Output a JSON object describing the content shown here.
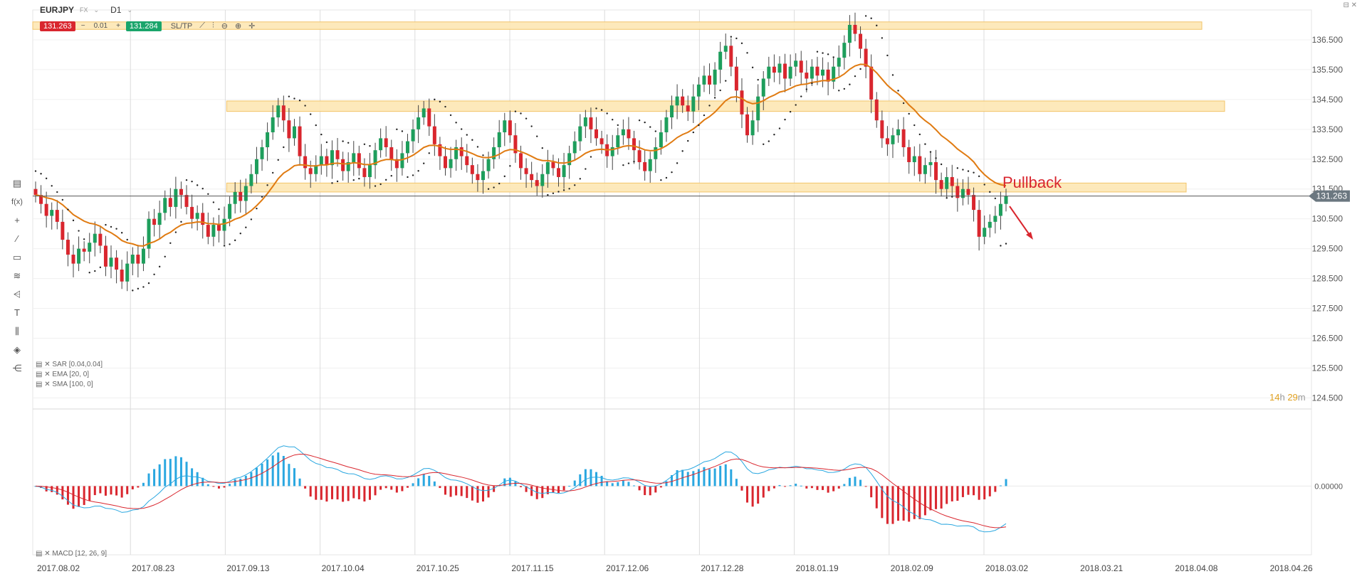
{
  "header": {
    "symbol": "EURJPY",
    "market": "FX",
    "timeframe": "D1",
    "bid": "131.263",
    "ask": "131.284",
    "quantity": "0.01",
    "sltp": "SL/TP",
    "minus": "−",
    "plus": "+"
  },
  "indicators": {
    "sar": "SAR [0.04,0.04]",
    "ema": "EMA [20, 0]",
    "sma": "SMA [100, 0]",
    "macd": "MACD [12, 26, 9]"
  },
  "timer": {
    "h": "14",
    "h_unit": "h",
    "m": "29",
    "m_unit": "m"
  },
  "annotation": "Pullback",
  "current_price_label": "131.263",
  "macd_zero_label": "0.00000",
  "colors": {
    "up": "#1e9e5c",
    "down": "#d9262e",
    "ema": "#e07b12",
    "zone": "#fde7b4",
    "zone_border": "#f2c46a",
    "macd": "#2aa7e0",
    "signal": "#d9262e"
  },
  "chart_data": {
    "type": "candlestick",
    "symbol": "EURJPY",
    "y_ticks": [
      "136.500",
      "135.500",
      "134.500",
      "133.500",
      "132.500",
      "131.500",
      "130.500",
      "129.500",
      "128.500",
      "127.500",
      "126.500",
      "125.500",
      "124.500"
    ],
    "x_ticks": [
      "2017.08.02",
      "2017.08.23",
      "2017.09.13",
      "2017.10.04",
      "2017.10.25",
      "2017.11.15",
      "2017.12.06",
      "2017.12.28",
      "2018.01.19",
      "2018.02.09",
      "2018.03.02",
      "2018.03.21",
      "2018.04.08",
      "2018.04.26"
    ],
    "ylim": [
      124.2,
      137.5
    ],
    "close_series": [
      131.3,
      131.0,
      130.6,
      130.8,
      130.4,
      129.8,
      129.3,
      129.0,
      129.5,
      129.4,
      129.7,
      130.0,
      129.6,
      128.9,
      129.2,
      128.8,
      128.4,
      129.0,
      129.3,
      129.0,
      129.5,
      130.5,
      130.3,
      130.7,
      131.2,
      130.9,
      131.5,
      131.3,
      130.9,
      130.5,
      130.7,
      130.3,
      129.9,
      130.3,
      130.1,
      130.5,
      131.0,
      131.4,
      131.1,
      131.6,
      132.0,
      132.5,
      132.9,
      133.4,
      133.9,
      134.3,
      133.8,
      133.2,
      133.6,
      132.6,
      132.2,
      132.0,
      132.3,
      132.6,
      132.3,
      132.8,
      132.5,
      132.1,
      132.4,
      132.7,
      132.2,
      131.9,
      132.3,
      132.8,
      133.2,
      132.9,
      132.5,
      132.2,
      132.7,
      133.1,
      133.5,
      133.9,
      134.2,
      133.6,
      133.0,
      132.6,
      132.2,
      132.5,
      132.9,
      132.6,
      132.3,
      132.0,
      131.8,
      132.1,
      132.5,
      132.9,
      133.4,
      133.8,
      133.3,
      132.7,
      132.2,
      132.0,
      131.8,
      131.6,
      132.0,
      132.4,
      132.2,
      131.9,
      132.3,
      132.7,
      133.1,
      133.6,
      133.9,
      133.5,
      133.2,
      133.0,
      132.6,
      132.9,
      133.3,
      133.5,
      133.2,
      132.8,
      132.4,
      132.1,
      132.5,
      132.9,
      133.4,
      133.9,
      134.3,
      134.6,
      134.3,
      134.1,
      134.6,
      135.0,
      135.3,
      135.0,
      135.5,
      136.1,
      136.3,
      135.6,
      134.8,
      134.0,
      133.3,
      133.8,
      134.6,
      135.2,
      135.6,
      135.4,
      135.7,
      135.2,
      135.6,
      135.8,
      135.4,
      135.2,
      135.6,
      135.3,
      135.5,
      135.1,
      135.6,
      135.9,
      136.4,
      137.0,
      136.7,
      136.2,
      135.6,
      134.5,
      133.8,
      133.2,
      133.0,
      133.3,
      133.5,
      132.9,
      132.4,
      132.6,
      132.0,
      132.3,
      132.4,
      131.8,
      131.5,
      131.9,
      131.6,
      131.2,
      131.5,
      131.3,
      130.8,
      129.9,
      130.2,
      130.4,
      130.6,
      131.0,
      131.26
    ],
    "ema_series_note": "EMA 20 of close",
    "zones": [
      {
        "from": "2017.08.02",
        "to": "2018.04.08",
        "low": 136.85,
        "high": 137.1
      },
      {
        "from": "2017.09.13",
        "to": "2018.04.08",
        "low": 134.1,
        "high": 134.45
      },
      {
        "from": "2017.09.13",
        "to": "2018.04.08",
        "low": 131.4,
        "high": 131.7
      }
    ],
    "current_price": 131.263,
    "annotation_text": "Pullback",
    "macd_range": [
      -2.2,
      2.4
    ]
  }
}
